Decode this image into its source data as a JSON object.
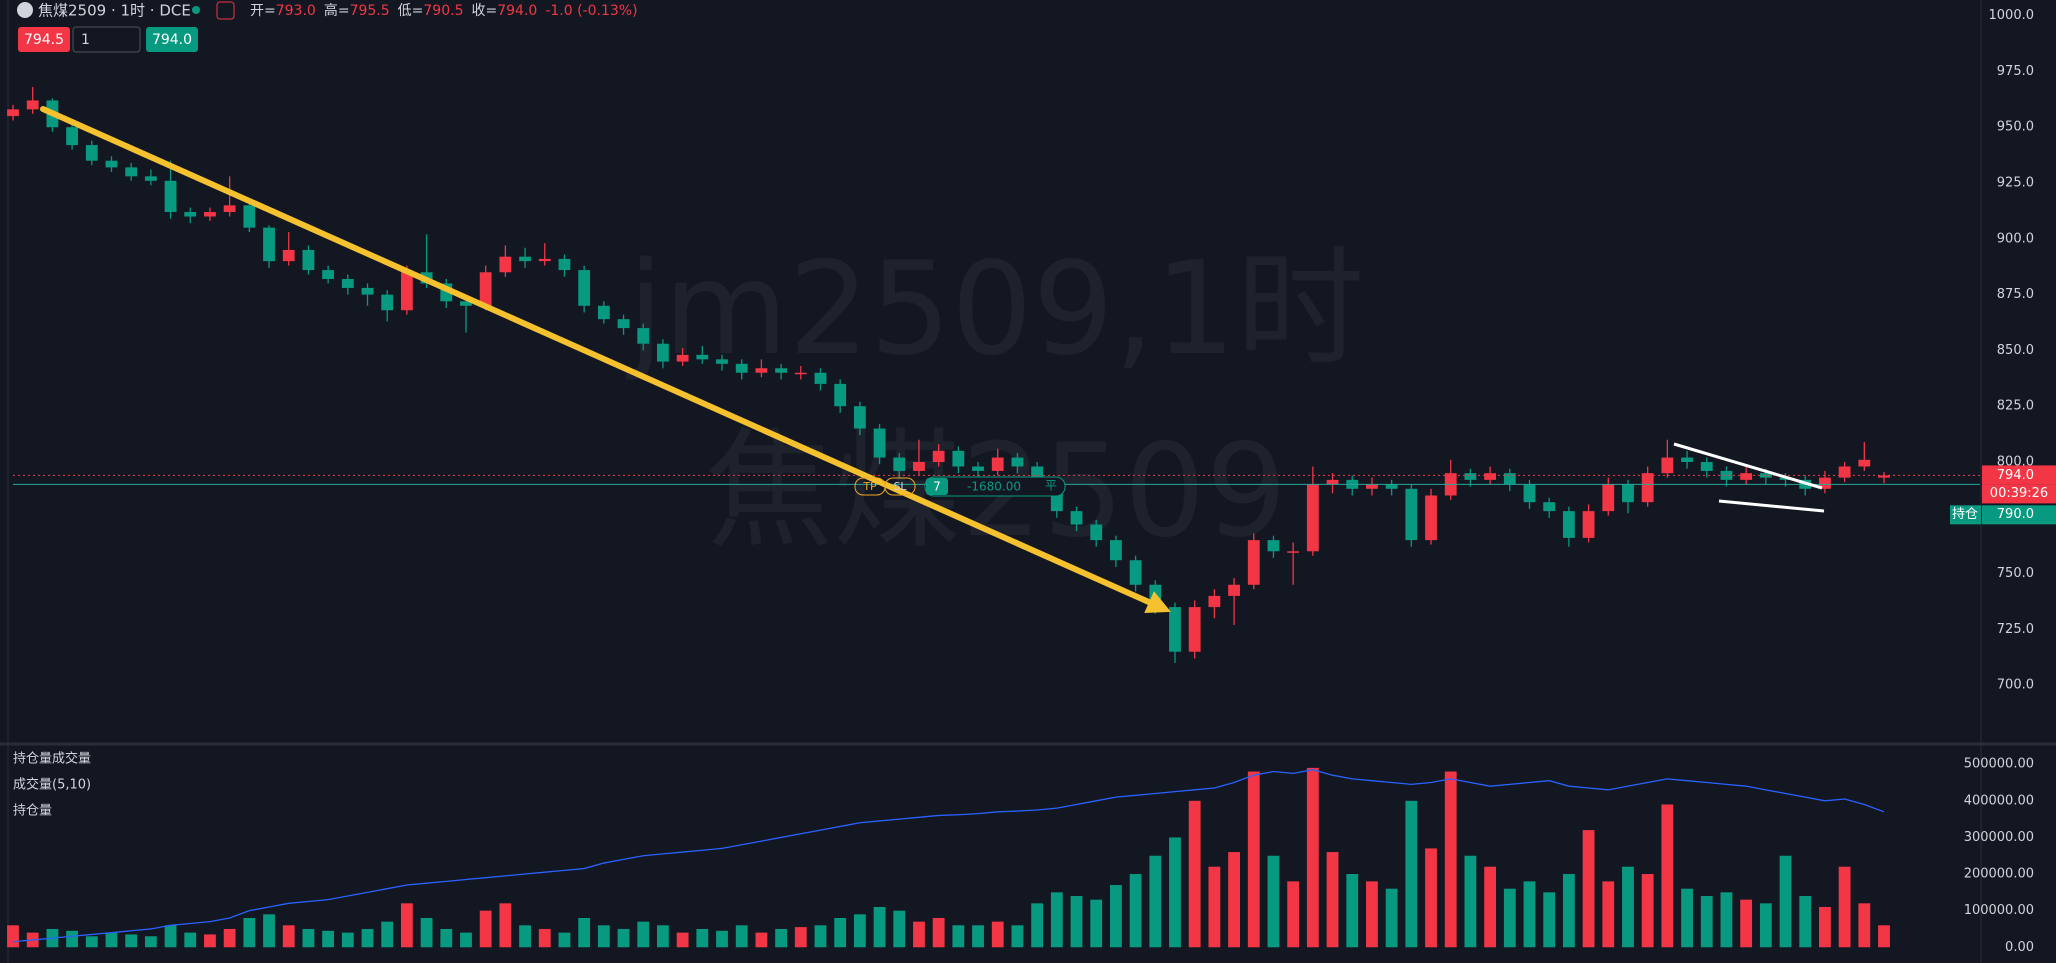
{
  "ui": {
    "symbol": "焦煤2509 · 1时 · DCE",
    "legend": [
      {
        "key": "开=",
        "value": "793.0"
      },
      {
        "key": "高=",
        "value": "795.5"
      },
      {
        "key": "低=",
        "value": "790.5"
      },
      {
        "key": "收=",
        "value": "794.0"
      }
    ],
    "change": "-1.0 (-0.13%)",
    "sell_price": "794.5",
    "quantity": "1",
    "buy_price": "794.0",
    "tp": "TP",
    "sl": "SL",
    "qty": "7",
    "pnl": "-1680.00",
    "close": "平"
  },
  "chart_data": [
    {
      "type": "candlestick",
      "title": "jm2509,1时",
      "subtitle": "焦煤2509",
      "up_color": "#f23645",
      "down_color": "#089981",
      "ylim": [
        675,
        1007
      ],
      "yticks": [
        {
          "value": 1000,
          "label": "1000.0"
        },
        {
          "value": 975,
          "label": "975.0"
        },
        {
          "value": 950,
          "label": "950.0"
        },
        {
          "value": 925,
          "label": "925.0"
        },
        {
          "value": 900,
          "label": "900.0"
        },
        {
          "value": 875,
          "label": "875.0"
        },
        {
          "value": 850,
          "label": "850.0"
        },
        {
          "value": 825,
          "label": "825.0"
        },
        {
          "value": 800,
          "label": "800.0"
        },
        {
          "value": 750,
          "label": "750.0"
        },
        {
          "value": 725,
          "label": "725.0"
        },
        {
          "value": 700,
          "label": "700.0"
        }
      ],
      "grid": false,
      "last_price": {
        "value": 794,
        "label": "794.0"
      },
      "countdown": "00:39:26",
      "position_line": {
        "value": 790,
        "label": "790.0"
      },
      "position_tag": "持仓",
      "ohlc": [
        [
          955,
          960,
          953,
          958
        ],
        [
          958,
          968,
          956,
          962
        ],
        [
          962,
          963,
          948,
          950
        ],
        [
          950,
          952,
          940,
          942
        ],
        [
          942,
          944,
          933,
          935
        ],
        [
          935,
          937,
          930,
          932
        ],
        [
          932,
          934,
          926,
          928
        ],
        [
          928,
          931,
          924,
          926
        ],
        [
          926,
          935,
          909,
          912
        ],
        [
          912,
          914,
          907,
          910
        ],
        [
          910,
          914,
          908,
          912
        ],
        [
          912,
          928,
          910,
          915
        ],
        [
          915,
          917,
          903,
          905
        ],
        [
          905,
          906,
          887,
          890
        ],
        [
          890,
          903,
          888,
          895
        ],
        [
          895,
          897,
          884,
          886
        ],
        [
          886,
          888,
          880,
          882
        ],
        [
          882,
          884,
          875,
          878
        ],
        [
          878,
          880,
          870,
          875
        ],
        [
          875,
          877,
          863,
          868
        ],
        [
          868,
          888,
          866,
          885
        ],
        [
          885,
          902,
          878,
          880
        ],
        [
          880,
          882,
          869,
          872
        ],
        [
          872,
          874,
          858,
          870
        ],
        [
          870,
          888,
          868,
          885
        ],
        [
          885,
          897,
          883,
          892
        ],
        [
          892,
          896,
          887,
          890
        ],
        [
          890,
          898,
          888,
          891
        ],
        [
          891,
          893,
          883,
          886
        ],
        [
          886,
          888,
          867,
          870
        ],
        [
          870,
          872,
          862,
          864
        ],
        [
          864,
          866,
          857,
          860
        ],
        [
          860,
          862,
          850,
          853
        ],
        [
          853,
          855,
          842,
          845
        ],
        [
          845,
          851,
          843,
          848
        ],
        [
          848,
          852,
          844,
          846
        ],
        [
          846,
          848,
          841,
          844
        ],
        [
          844,
          846,
          837,
          840
        ],
        [
          840,
          846,
          838,
          842
        ],
        [
          842,
          844,
          837,
          840
        ],
        [
          840,
          843,
          837,
          840
        ],
        [
          840,
          842,
          832,
          835
        ],
        [
          835,
          837,
          822,
          825
        ],
        [
          825,
          827,
          812,
          815
        ],
        [
          815,
          817,
          799,
          802
        ],
        [
          802,
          804,
          793,
          796
        ],
        [
          796,
          810,
          794,
          800
        ],
        [
          800,
          808,
          798,
          805
        ],
        [
          805,
          807,
          795,
          798
        ],
        [
          798,
          800,
          793,
          796
        ],
        [
          796,
          806,
          794,
          802
        ],
        [
          802,
          804,
          795,
          798
        ],
        [
          798,
          800,
          787,
          790
        ],
        [
          790,
          792,
          775,
          778
        ],
        [
          778,
          780,
          769,
          772
        ],
        [
          772,
          774,
          762,
          765
        ],
        [
          765,
          767,
          753,
          756
        ],
        [
          756,
          758,
          742,
          745
        ],
        [
          745,
          747,
          732,
          735
        ],
        [
          735,
          737,
          710,
          715
        ],
        [
          715,
          738,
          712,
          735
        ],
        [
          735,
          743,
          730,
          740
        ],
        [
          740,
          748,
          727,
          745
        ],
        [
          745,
          768,
          743,
          765
        ],
        [
          765,
          767,
          757,
          760
        ],
        [
          760,
          764,
          745,
          760
        ],
        [
          760,
          798,
          758,
          790
        ],
        [
          790,
          795,
          786,
          792
        ],
        [
          792,
          794,
          785,
          788
        ],
        [
          788,
          793,
          785,
          790
        ],
        [
          790,
          792,
          785,
          788
        ],
        [
          788,
          790,
          762,
          765
        ],
        [
          765,
          788,
          763,
          785
        ],
        [
          785,
          801,
          783,
          795
        ],
        [
          795,
          797,
          789,
          792
        ],
        [
          792,
          798,
          790,
          795
        ],
        [
          795,
          797,
          787,
          790
        ],
        [
          790,
          792,
          779,
          782
        ],
        [
          782,
          784,
          775,
          778
        ],
        [
          778,
          780,
          762,
          766
        ],
        [
          766,
          781,
          764,
          778
        ],
        [
          778,
          793,
          776,
          790
        ],
        [
          790,
          792,
          777,
          782
        ],
        [
          782,
          798,
          780,
          795
        ],
        [
          795,
          810,
          793,
          802
        ],
        [
          802,
          805,
          797,
          800
        ],
        [
          800,
          802,
          793,
          796
        ],
        [
          796,
          798,
          789,
          792
        ],
        [
          792,
          798,
          790,
          795
        ],
        [
          795,
          797,
          790,
          793
        ],
        [
          793,
          795,
          789,
          792
        ],
        [
          792,
          794,
          785,
          788
        ],
        [
          788,
          796,
          786,
          793
        ],
        [
          793,
          800,
          791,
          798
        ],
        [
          798,
          809,
          796,
          801
        ],
        [
          793,
          795.5,
          790.5,
          794
        ]
      ]
    },
    {
      "type": "bar",
      "title": "持仓量成交量",
      "ylim": [
        -43000,
        547000
      ],
      "yticks": [
        {
          "value": 500000,
          "label": "500000.00"
        },
        {
          "value": 400000,
          "label": "400000.00"
        },
        {
          "value": 300000,
          "label": "300000.00"
        },
        {
          "value": 200000,
          "label": "200000.00"
        },
        {
          "value": 100000,
          "label": "100000.00"
        },
        {
          "value": 0,
          "label": "0.00"
        }
      ],
      "series": [
        {
          "name": "成交量(5,10)",
          "values": [
            60000,
            40000,
            50000,
            45000,
            30000,
            40000,
            35000,
            30000,
            60000,
            40000,
            35000,
            50000,
            80000,
            90000,
            60000,
            50000,
            45000,
            40000,
            50000,
            70000,
            120000,
            80000,
            50000,
            40000,
            100000,
            120000,
            60000,
            50000,
            40000,
            80000,
            60000,
            50000,
            70000,
            60000,
            40000,
            50000,
            45000,
            60000,
            40000,
            50000,
            55000,
            60000,
            80000,
            90000,
            110000,
            100000,
            70000,
            80000,
            60000,
            60000,
            70000,
            60000,
            120000,
            150000,
            140000,
            130000,
            170000,
            200000,
            250000,
            300000,
            400000,
            220000,
            260000,
            480000,
            250000,
            180000,
            490000,
            260000,
            200000,
            180000,
            160000,
            400000,
            270000,
            480000,
            250000,
            220000,
            160000,
            180000,
            150000,
            200000,
            320000,
            180000,
            220000,
            200000,
            390000,
            160000,
            140000,
            150000,
            130000,
            120000,
            250000,
            140000,
            110000,
            220000,
            120000,
            60000
          ]
        },
        {
          "name": "持仓量",
          "type": "line",
          "color": "#2962ff",
          "values": [
            15000,
            20000,
            25000,
            30000,
            35000,
            40000,
            45000,
            50000,
            60000,
            65000,
            70000,
            80000,
            100000,
            110000,
            120000,
            125000,
            130000,
            140000,
            150000,
            160000,
            170000,
            175000,
            180000,
            185000,
            190000,
            195000,
            200000,
            205000,
            210000,
            215000,
            230000,
            240000,
            250000,
            255000,
            260000,
            265000,
            270000,
            280000,
            290000,
            300000,
            310000,
            320000,
            330000,
            340000,
            345000,
            350000,
            355000,
            360000,
            362000,
            365000,
            370000,
            372000,
            375000,
            380000,
            390000,
            400000,
            410000,
            415000,
            420000,
            425000,
            430000,
            435000,
            450000,
            470000,
            480000,
            475000,
            485000,
            470000,
            460000,
            455000,
            450000,
            445000,
            450000,
            460000,
            450000,
            440000,
            445000,
            450000,
            455000,
            440000,
            435000,
            430000,
            440000,
            450000,
            460000,
            455000,
            450000,
            445000,
            440000,
            430000,
            420000,
            410000,
            400000,
            405000,
            390000,
            370000
          ]
        }
      ]
    }
  ]
}
